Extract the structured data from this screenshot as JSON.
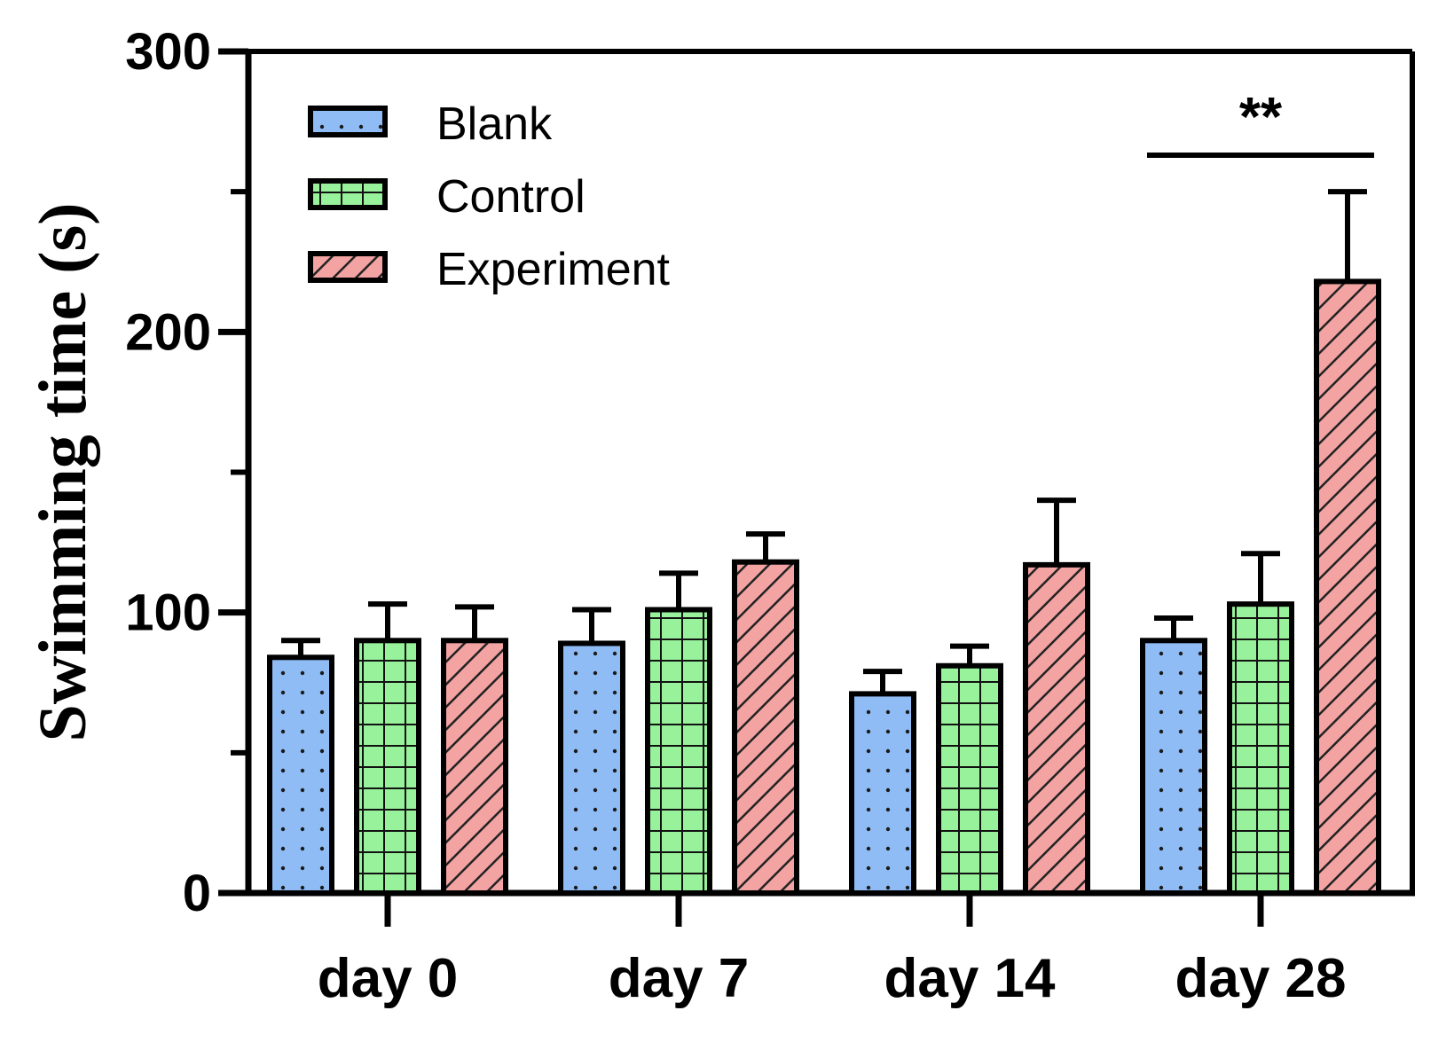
{
  "chart_data": {
    "type": "bar",
    "title": "",
    "xlabel": "",
    "ylabel": "Swimming time (s)",
    "ylim": [
      0,
      300
    ],
    "yticks_major": [
      0,
      100,
      200,
      300
    ],
    "yticks_minor": [
      50,
      150,
      250
    ],
    "categories": [
      "day 0",
      "day 7",
      "day 14",
      "day 28"
    ],
    "series": [
      {
        "name": "Blank",
        "color": "#8fbcf5",
        "pattern": "dots",
        "values": [
          84,
          89,
          71,
          90
        ],
        "errors": [
          6,
          12,
          8,
          8
        ]
      },
      {
        "name": "Control",
        "color": "#98f29b",
        "pattern": "grid",
        "values": [
          90,
          101,
          81,
          103
        ],
        "errors": [
          13,
          13,
          7,
          18
        ]
      },
      {
        "name": "Experiment",
        "color": "#f4a3a3",
        "pattern": "hatch",
        "values": [
          90,
          118,
          117,
          218
        ],
        "errors": [
          12,
          10,
          23,
          32
        ]
      }
    ],
    "legend": {
      "position": "top-left"
    },
    "grid": false,
    "annotations": [
      {
        "text": "**",
        "category": "day 28",
        "bracket_from_series": "Blank",
        "bracket_to_series": "Experiment",
        "y": 263
      }
    ]
  }
}
